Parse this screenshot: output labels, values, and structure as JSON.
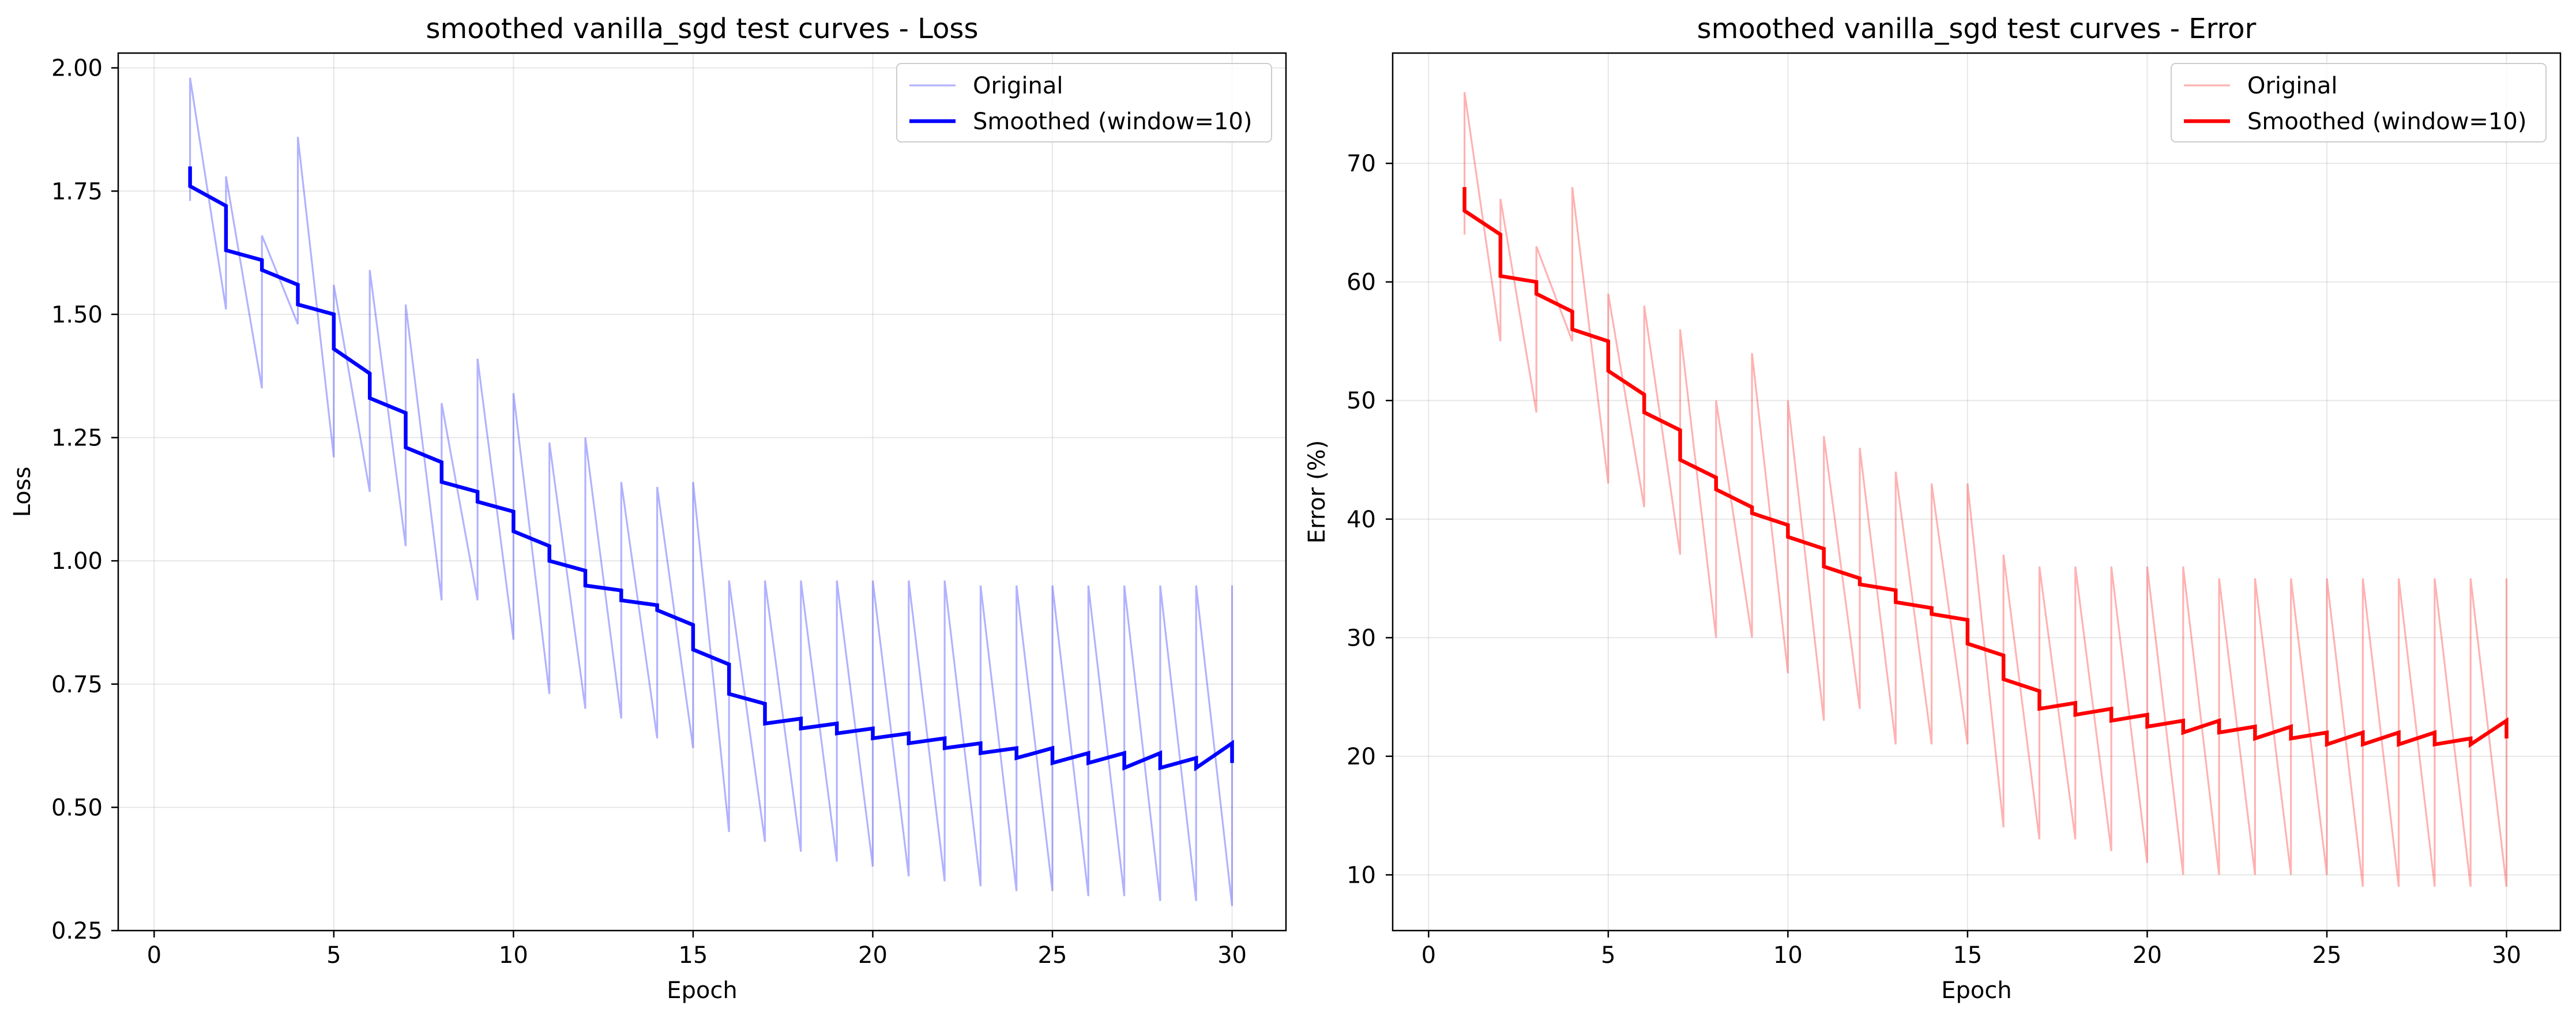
{
  "chart_data": [
    {
      "type": "line",
      "title": "smoothed vanilla_sgd test curves - Loss",
      "xlabel": "Epoch",
      "ylabel": "Loss",
      "xlim": [
        -1.0,
        31.5
      ],
      "ylim": [
        0.25,
        2.03
      ],
      "xticks": [
        0,
        5,
        10,
        15,
        20,
        25,
        30
      ],
      "yticks": [
        0.25,
        0.5,
        0.75,
        1.0,
        1.25,
        1.5,
        1.75,
        2.0
      ],
      "ytick_labels": [
        "0.25",
        "0.50",
        "0.75",
        "1.00",
        "1.25",
        "1.50",
        "1.75",
        "2.00"
      ],
      "grid": true,
      "legend_position": "upper right",
      "legend": [
        "Original",
        "Smoothed (window=10)"
      ],
      "colors": {
        "original": "#0000ff",
        "smoothed": "#0000ff"
      },
      "series": [
        {
          "name": "Original",
          "x": [
            1,
            1,
            2,
            2,
            3,
            3,
            4,
            4,
            5,
            5,
            6,
            6,
            7,
            7,
            8,
            8,
            9,
            9,
            10,
            10,
            11,
            11,
            12,
            12,
            13,
            13,
            14,
            14,
            15,
            15,
            16,
            16,
            17,
            17,
            18,
            18,
            19,
            19,
            20,
            20,
            21,
            21,
            22,
            22,
            23,
            23,
            24,
            24,
            25,
            25,
            26,
            26,
            27,
            27,
            28,
            28,
            29,
            29,
            30,
            30
          ],
          "y": [
            1.73,
            1.98,
            1.51,
            1.78,
            1.35,
            1.66,
            1.48,
            1.86,
            1.21,
            1.56,
            1.14,
            1.59,
            1.03,
            1.52,
            0.92,
            1.32,
            0.92,
            1.41,
            0.84,
            1.34,
            0.73,
            1.24,
            0.7,
            1.25,
            0.68,
            1.16,
            0.64,
            1.15,
            0.62,
            1.16,
            0.45,
            0.96,
            0.43,
            0.96,
            0.41,
            0.96,
            0.39,
            0.96,
            0.38,
            0.96,
            0.36,
            0.96,
            0.35,
            0.96,
            0.34,
            0.95,
            0.33,
            0.95,
            0.33,
            0.95,
            0.32,
            0.95,
            0.32,
            0.95,
            0.31,
            0.95,
            0.31,
            0.95,
            0.3,
            0.95
          ]
        },
        {
          "name": "Smoothed (window=10)",
          "x": [
            1,
            1,
            2,
            2,
            3,
            3,
            4,
            4,
            5,
            5,
            6,
            6,
            7,
            7,
            8,
            8,
            9,
            9,
            10,
            10,
            11,
            11,
            12,
            12,
            13,
            13,
            14,
            14,
            15,
            15,
            16,
            16,
            17,
            17,
            18,
            18,
            19,
            19,
            20,
            20,
            21,
            21,
            22,
            22,
            23,
            23,
            24,
            24,
            25,
            25,
            26,
            26,
            27,
            27,
            28,
            28,
            29,
            29,
            30,
            30
          ],
          "y": [
            1.8,
            1.76,
            1.72,
            1.63,
            1.61,
            1.59,
            1.56,
            1.52,
            1.5,
            1.43,
            1.38,
            1.33,
            1.3,
            1.23,
            1.2,
            1.16,
            1.14,
            1.12,
            1.1,
            1.06,
            1.03,
            1.0,
            0.98,
            0.95,
            0.94,
            0.92,
            0.91,
            0.9,
            0.87,
            0.82,
            0.79,
            0.73,
            0.71,
            0.67,
            0.68,
            0.66,
            0.67,
            0.65,
            0.66,
            0.64,
            0.65,
            0.63,
            0.64,
            0.62,
            0.63,
            0.61,
            0.62,
            0.6,
            0.62,
            0.59,
            0.61,
            0.59,
            0.61,
            0.58,
            0.61,
            0.58,
            0.6,
            0.58,
            0.63,
            0.59
          ]
        }
      ]
    },
    {
      "type": "line",
      "title": "smoothed vanilla_sgd test curves - Error",
      "xlabel": "Epoch",
      "ylabel": "Error (%)",
      "xlim": [
        -1.0,
        31.5
      ],
      "ylim": [
        5.3,
        79.3
      ],
      "xticks": [
        0,
        5,
        10,
        15,
        20,
        25,
        30
      ],
      "yticks": [
        10,
        20,
        30,
        40,
        50,
        60,
        70
      ],
      "ytick_labels": [
        "10",
        "20",
        "30",
        "40",
        "50",
        "60",
        "70"
      ],
      "grid": true,
      "legend_position": "upper right",
      "legend": [
        "Original",
        "Smoothed (window=10)"
      ],
      "colors": {
        "original": "#ff0000",
        "smoothed": "#ff0000"
      },
      "series": [
        {
          "name": "Original",
          "x": [
            1,
            1,
            2,
            2,
            3,
            3,
            4,
            4,
            5,
            5,
            6,
            6,
            7,
            7,
            8,
            8,
            9,
            9,
            10,
            10,
            11,
            11,
            12,
            12,
            13,
            13,
            14,
            14,
            15,
            15,
            16,
            16,
            17,
            17,
            18,
            18,
            19,
            19,
            20,
            20,
            21,
            21,
            22,
            22,
            23,
            23,
            24,
            24,
            25,
            25,
            26,
            26,
            27,
            27,
            28,
            28,
            29,
            29,
            30,
            30
          ],
          "y": [
            64,
            76,
            55,
            67,
            49,
            63,
            55,
            68,
            43,
            59,
            41,
            58,
            37,
            56,
            30,
            50,
            30,
            54,
            27,
            50,
            23,
            47,
            24,
            46,
            21,
            44,
            21,
            43,
            21,
            43,
            14,
            37,
            13,
            36,
            13,
            36,
            12,
            36,
            11,
            36,
            10,
            36,
            10,
            35,
            10,
            35,
            10,
            35,
            10,
            35,
            9,
            35,
            9,
            35,
            9,
            35,
            9,
            35,
            9,
            35
          ]
        },
        {
          "name": "Smoothed (window=10)",
          "x": [
            1,
            1,
            2,
            2,
            3,
            3,
            4,
            4,
            5,
            5,
            6,
            6,
            7,
            7,
            8,
            8,
            9,
            9,
            10,
            10,
            11,
            11,
            12,
            12,
            13,
            13,
            14,
            14,
            15,
            15,
            16,
            16,
            17,
            17,
            18,
            18,
            19,
            19,
            20,
            20,
            21,
            21,
            22,
            22,
            23,
            23,
            24,
            24,
            25,
            25,
            26,
            26,
            27,
            27,
            28,
            28,
            29,
            29,
            30,
            30
          ],
          "y": [
            68,
            66,
            64,
            60.5,
            60,
            59,
            57.5,
            56,
            55,
            52.5,
            50.5,
            49,
            47.5,
            45,
            43.5,
            42.5,
            41,
            40.5,
            39.5,
            38.5,
            37.5,
            36,
            35,
            34.5,
            34,
            33,
            32.5,
            32,
            31.5,
            29.5,
            28.5,
            26.5,
            25.5,
            24,
            24.5,
            23.5,
            24,
            23,
            23.5,
            22.5,
            23,
            22,
            23,
            22,
            22.5,
            21.5,
            22.5,
            21.5,
            22,
            21,
            22,
            21,
            22,
            21,
            22,
            21,
            21.5,
            21,
            23,
            21.5
          ]
        }
      ]
    }
  ]
}
